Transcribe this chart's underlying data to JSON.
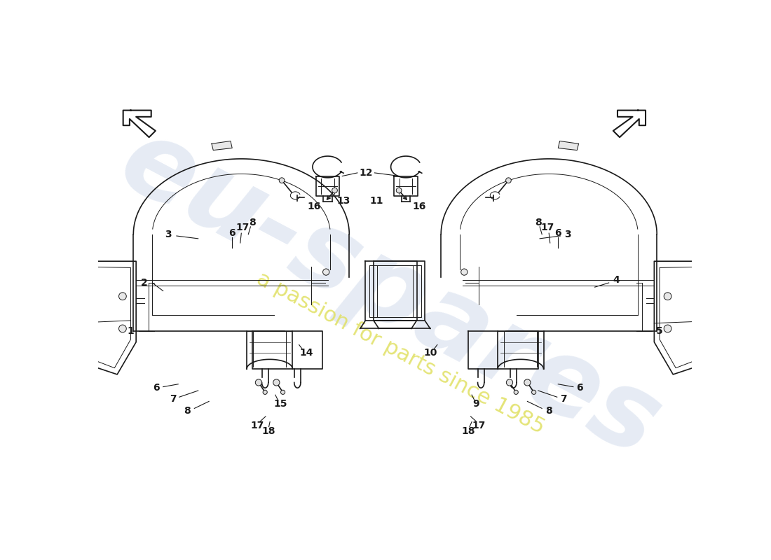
{
  "bg_color": "#ffffff",
  "line_color": "#1a1a1a",
  "watermark_text1": "eu-spares",
  "watermark_text2": "a passion for parts since 1985",
  "watermark_color1": "#c8d4e8",
  "watermark_color2": "#e0e060",
  "fig_w": 11.0,
  "fig_h": 8.0,
  "dpi": 100
}
